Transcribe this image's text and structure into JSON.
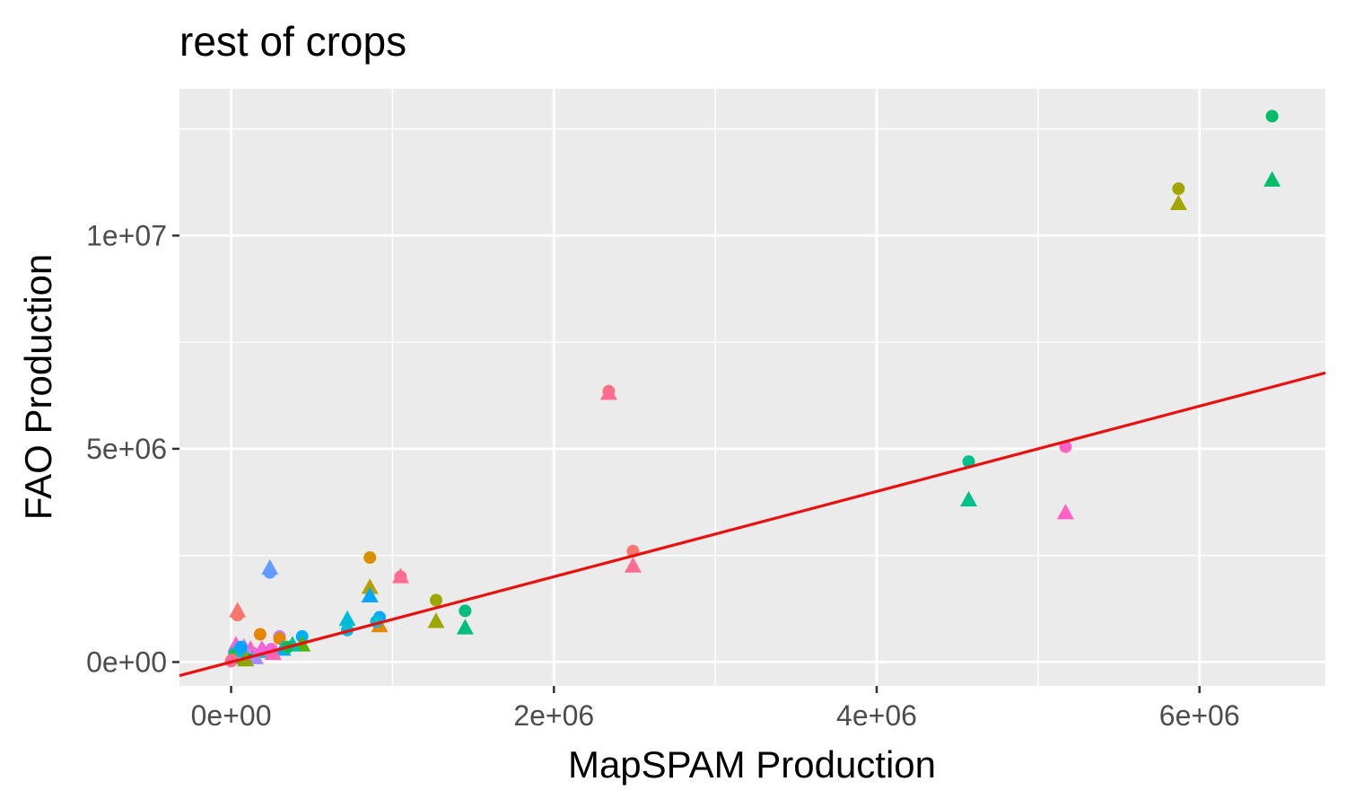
{
  "chart_data": {
    "type": "scatter",
    "title": "rest of crops",
    "xlabel": "MapSPAM Production",
    "ylabel": "FAO Production",
    "xlim": [
      -320000,
      6780000
    ],
    "ylim": [
      -560000,
      13440000
    ],
    "x_ticks": [
      {
        "value": 0,
        "label": "0e+00"
      },
      {
        "value": 2000000,
        "label": "2e+06"
      },
      {
        "value": 4000000,
        "label": "4e+06"
      },
      {
        "value": 6000000,
        "label": "6e+06"
      }
    ],
    "y_ticks": [
      {
        "value": 0,
        "label": "0e+00"
      },
      {
        "value": 5000000,
        "label": "5e+06"
      },
      {
        "value": 10000000,
        "label": "1e+07"
      }
    ],
    "x_minor": [
      1000000,
      3000000,
      5000000
    ],
    "y_minor": [
      2500000,
      7500000,
      12500000
    ],
    "grid": true,
    "background": "#ebebeb",
    "reference_line": {
      "slope": 1,
      "intercept": 0,
      "color": "#e8110f"
    },
    "points": [
      {
        "x": 6450000,
        "y": 12800000,
        "shape": "circle",
        "color": "#00be67"
      },
      {
        "x": 6450000,
        "y": 11300000,
        "shape": "triangle",
        "color": "#00be67"
      },
      {
        "x": 5870000,
        "y": 11100000,
        "shape": "circle",
        "color": "#a3a500"
      },
      {
        "x": 5870000,
        "y": 10750000,
        "shape": "triangle",
        "color": "#a3a500"
      },
      {
        "x": 2340000,
        "y": 6350000,
        "shape": "circle",
        "color": "#f8766d"
      },
      {
        "x": 2340000,
        "y": 6300000,
        "shape": "triangle",
        "color": "#ff6c91"
      },
      {
        "x": 4570000,
        "y": 4700000,
        "shape": "circle",
        "color": "#00c08b"
      },
      {
        "x": 4570000,
        "y": 3800000,
        "shape": "triangle",
        "color": "#00c08b"
      },
      {
        "x": 5170000,
        "y": 5050000,
        "shape": "circle",
        "color": "#ff61c3"
      },
      {
        "x": 5170000,
        "y": 3500000,
        "shape": "triangle",
        "color": "#ff61c3"
      },
      {
        "x": 2490000,
        "y": 2600000,
        "shape": "circle",
        "color": "#f8766d"
      },
      {
        "x": 2490000,
        "y": 2250000,
        "shape": "triangle",
        "color": "#ff6c91"
      },
      {
        "x": 1050000,
        "y": 2000000,
        "shape": "circle",
        "color": "#ff6c91"
      },
      {
        "x": 1050000,
        "y": 2000000,
        "shape": "triangle",
        "color": "#ff6c91"
      },
      {
        "x": 860000,
        "y": 2450000,
        "shape": "circle",
        "color": "#d89000"
      },
      {
        "x": 860000,
        "y": 1750000,
        "shape": "triangle",
        "color": "#b79f00"
      },
      {
        "x": 860000,
        "y": 1550000,
        "shape": "triangle",
        "color": "#00a9ff"
      },
      {
        "x": 1270000,
        "y": 1450000,
        "shape": "circle",
        "color": "#9da700"
      },
      {
        "x": 1270000,
        "y": 950000,
        "shape": "triangle",
        "color": "#9da700"
      },
      {
        "x": 1450000,
        "y": 1200000,
        "shape": "circle",
        "color": "#00bf7d"
      },
      {
        "x": 1450000,
        "y": 800000,
        "shape": "triangle",
        "color": "#00bf7d"
      },
      {
        "x": 920000,
        "y": 1050000,
        "shape": "circle",
        "color": "#00a9ff"
      },
      {
        "x": 920000,
        "y": 850000,
        "shape": "triangle",
        "color": "#e58700"
      },
      {
        "x": 900000,
        "y": 950000,
        "shape": "circle",
        "color": "#00bcd8"
      },
      {
        "x": 720000,
        "y": 1000000,
        "shape": "triangle",
        "color": "#00bcd8"
      },
      {
        "x": 720000,
        "y": 750000,
        "shape": "circle",
        "color": "#00bcd8"
      },
      {
        "x": 240000,
        "y": 2200000,
        "shape": "triangle",
        "color": "#619cff"
      },
      {
        "x": 240000,
        "y": 2100000,
        "shape": "circle",
        "color": "#619cff"
      },
      {
        "x": 40000,
        "y": 1200000,
        "shape": "triangle",
        "color": "#f8766d"
      },
      {
        "x": 40000,
        "y": 1100000,
        "shape": "circle",
        "color": "#f8766d"
      },
      {
        "x": 180000,
        "y": 650000,
        "shape": "circle",
        "color": "#e58700"
      },
      {
        "x": 300000,
        "y": 600000,
        "shape": "circle",
        "color": "#c77cff"
      },
      {
        "x": 300000,
        "y": 550000,
        "shape": "circle",
        "color": "#e58700"
      },
      {
        "x": 440000,
        "y": 600000,
        "shape": "circle",
        "color": "#00b0f6"
      },
      {
        "x": 440000,
        "y": 400000,
        "shape": "triangle",
        "color": "#53b400"
      },
      {
        "x": 380000,
        "y": 400000,
        "shape": "triangle",
        "color": "#00c1a3"
      },
      {
        "x": 320000,
        "y": 300000,
        "shape": "triangle",
        "color": "#00b0f6"
      },
      {
        "x": 250000,
        "y": 300000,
        "shape": "circle",
        "color": "#f564e3"
      },
      {
        "x": 200000,
        "y": 250000,
        "shape": "triangle",
        "color": "#00bfc4"
      },
      {
        "x": 140000,
        "y": 200000,
        "shape": "circle",
        "color": "#e76bf3"
      },
      {
        "x": 120000,
        "y": 300000,
        "shape": "triangle",
        "color": "#ff62bc"
      },
      {
        "x": 100000,
        "y": 150000,
        "shape": "circle",
        "color": "#00ba38"
      },
      {
        "x": 80000,
        "y": 350000,
        "shape": "triangle",
        "color": "#b983ff"
      },
      {
        "x": 60000,
        "y": 250000,
        "shape": "circle",
        "color": "#00b4ef"
      },
      {
        "x": 30000,
        "y": 400000,
        "shape": "triangle",
        "color": "#fd61d1"
      },
      {
        "x": 20000,
        "y": 200000,
        "shape": "circle",
        "color": "#00c0b8"
      },
      {
        "x": 10000,
        "y": 100000,
        "shape": "triangle",
        "color": "#39b600"
      },
      {
        "x": 5000,
        "y": 50000,
        "shape": "circle",
        "color": "#f8766d"
      },
      {
        "x": 0,
        "y": 20000,
        "shape": "circle",
        "color": "#ff6a98"
      },
      {
        "x": 150000,
        "y": 100000,
        "shape": "triangle",
        "color": "#a58aff"
      },
      {
        "x": 260000,
        "y": 200000,
        "shape": "triangle",
        "color": "#ff64b0"
      },
      {
        "x": 350000,
        "y": 350000,
        "shape": "circle",
        "color": "#00bd5c"
      },
      {
        "x": 90000,
        "y": 50000,
        "shape": "triangle",
        "color": "#8ea400"
      },
      {
        "x": 60000,
        "y": 350000,
        "shape": "circle",
        "color": "#00a5ff"
      },
      {
        "x": 190000,
        "y": 300000,
        "shape": "triangle",
        "color": "#fb61d7"
      }
    ]
  }
}
